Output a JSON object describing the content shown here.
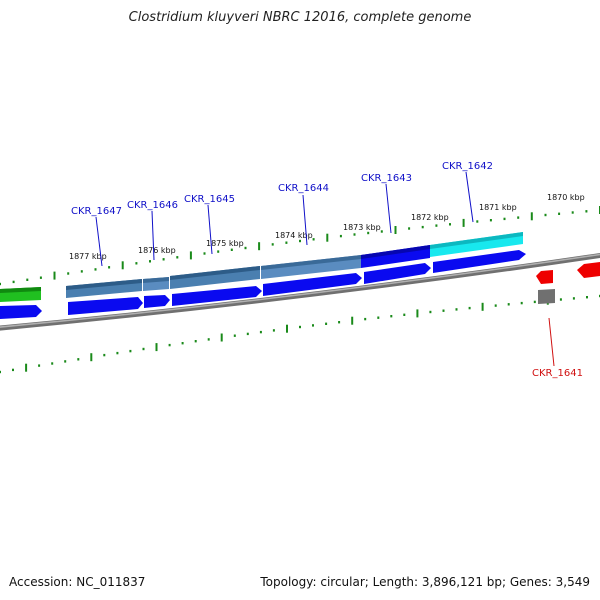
{
  "title": "Clostridium kluyveri NBRC 12016, complete genome",
  "footer": {
    "accession": "Accession: NC_011837",
    "summary": "Topology: circular; Length: 3,896,121 bp; Genes: 3,549"
  },
  "colors": {
    "tick": "#1a8a1a",
    "backbone": "#8a8a8a",
    "gene_label_blue": "#1010c8",
    "gene_label_red": "#d01010",
    "cds_blue": "#0a0af0",
    "cds_steel": "#4a7fb0",
    "cds_cyan": "#18e8ee",
    "cds_green": "#20c020",
    "cds_red": "#ee0000",
    "cds_gray": "#707070"
  },
  "ticks": {
    "labels": [
      "1870 kbp",
      "1871 kbp",
      "1872 kbp",
      "1873 kbp",
      "1874 kbp",
      "1875 kbp",
      "1876 kbp",
      "1877 kbp"
    ]
  },
  "genes": [
    {
      "name": "CKR_1647",
      "strand": "minus",
      "color": "blue"
    },
    {
      "name": "CKR_1646",
      "strand": "minus",
      "color": "blue"
    },
    {
      "name": "CKR_1645",
      "strand": "minus",
      "color": "blue"
    },
    {
      "name": "CKR_1644",
      "strand": "minus",
      "color": "blue"
    },
    {
      "name": "CKR_1643",
      "strand": "minus",
      "color": "blue"
    },
    {
      "name": "CKR_1642",
      "strand": "minus",
      "color": "blue"
    },
    {
      "name": "CKR_1641",
      "strand": "plus",
      "color": "red"
    }
  ]
}
